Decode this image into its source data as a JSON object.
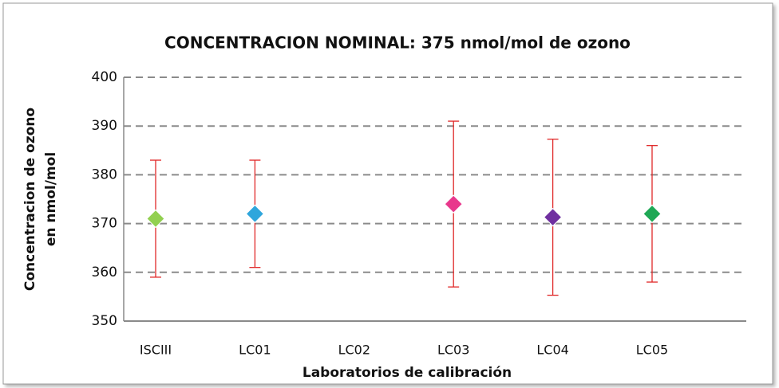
{
  "chart_data": {
    "type": "errorbar",
    "title": "CONCENTRACION NOMINAL: 375 nmol/mol de ozono",
    "ylabel": [
      "Concentracion de ozono",
      "en nmol/mol"
    ],
    "xlabel": "Laboratorios de calibración",
    "categories": [
      "ISCIII",
      "LC01",
      "LC02",
      "LC03",
      "LC04",
      "LC05"
    ],
    "values": [
      371,
      372,
      null,
      374,
      371.3,
      372
    ],
    "errors": [
      12,
      11,
      null,
      17,
      16,
      14
    ],
    "colors": [
      "#92d050",
      "#2fa6dc",
      null,
      "#e8388c",
      "#7030a0",
      "#1fa855"
    ],
    "error_color": "#e02828",
    "ylim": [
      350,
      400
    ],
    "yticks": [
      350,
      360,
      370,
      380,
      390,
      400
    ],
    "grid": true
  }
}
